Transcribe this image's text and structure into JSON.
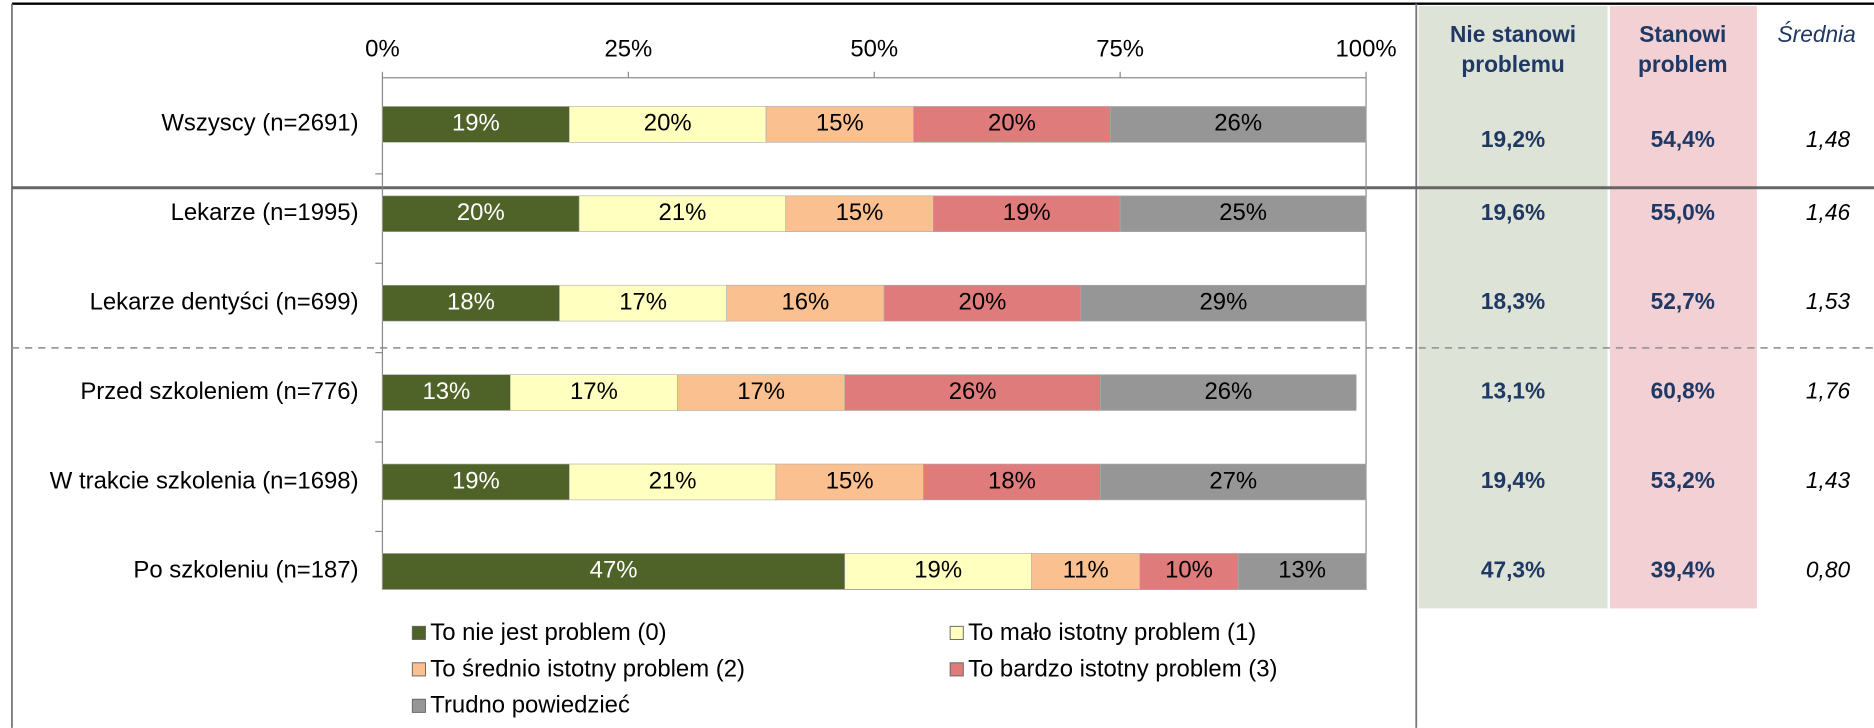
{
  "chart_data": {
    "type": "stacked_barh",
    "categories": [
      "Wszyscy (n=2691)",
      "Lekarze (n=1995)",
      "Lekarze dentyści (n=699)",
      "Przed szkoleniem (n=776)",
      "W trakcie szkolenia (n=1698)",
      "Po szkoleniu (n=187)"
    ],
    "series": [
      {
        "name": "To nie jest problem (0)",
        "color": "#4f6228",
        "values": [
          19,
          20,
          18,
          13,
          19,
          47
        ],
        "value_labels": [
          "19%",
          "20%",
          "18%",
          "13%",
          "19%",
          "47%"
        ]
      },
      {
        "name": "To mało istotny problem (1)",
        "color": "#ffffc0",
        "values": [
          20,
          21,
          17,
          17,
          21,
          19
        ],
        "value_labels": [
          "20%",
          "21%",
          "17%",
          "17%",
          "21%",
          "19%"
        ]
      },
      {
        "name": "To średnio istotny problem (2)",
        "color": "#fac090",
        "values": [
          15,
          15,
          16,
          17,
          15,
          11
        ],
        "value_labels": [
          "15%",
          "15%",
          "16%",
          "17%",
          "15%",
          "11%"
        ]
      },
      {
        "name": "To bardzo istotny problem (3)",
        "color": "#e07b7b",
        "values": [
          20,
          19,
          20,
          26,
          18,
          10
        ],
        "value_labels": [
          "20%",
          "19%",
          "20%",
          "26%",
          "18%",
          "10%"
        ]
      },
      {
        "name": "Trudno powiedzieć",
        "color": "#969696",
        "values": [
          26,
          25,
          29,
          26,
          27,
          13
        ],
        "value_labels": [
          "26%",
          "25%",
          "29%",
          "26%",
          "27%",
          "13%"
        ]
      }
    ],
    "xlim": [
      0,
      100
    ],
    "xticks": [
      {
        "value": 0,
        "label": "0%"
      },
      {
        "value": 25,
        "label": "25%"
      },
      {
        "value": 50,
        "label": "50%"
      },
      {
        "value": 75,
        "label": "75%"
      },
      {
        "value": 100,
        "label": "100%"
      }
    ]
  },
  "table": {
    "headers": [
      [
        "Nie stanowi",
        "problemu"
      ],
      [
        "Stanowi",
        "problem"
      ],
      [
        "Średnia"
      ]
    ],
    "rows": [
      [
        "19,2%",
        "54,4%",
        "1,48"
      ],
      [
        "19,6%",
        "55,0%",
        "1,46"
      ],
      [
        "18,3%",
        "52,7%",
        "1,53"
      ],
      [
        "13,1%",
        "60,8%",
        "1,76"
      ],
      [
        "19,4%",
        "53,2%",
        "1,43"
      ],
      [
        "47,3%",
        "39,4%",
        "0,80"
      ]
    ]
  }
}
